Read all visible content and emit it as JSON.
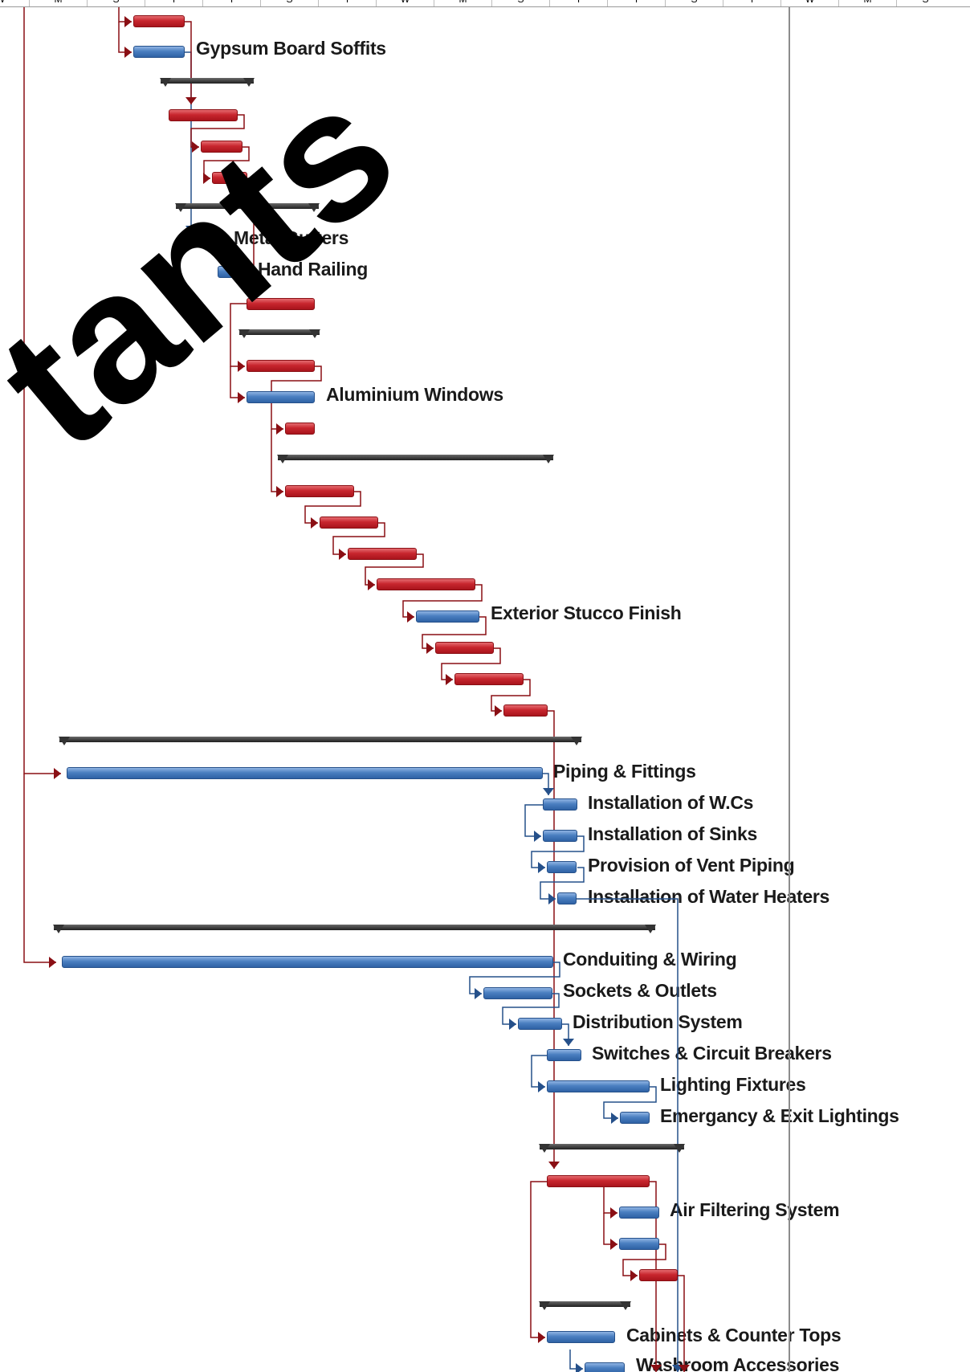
{
  "timescale": {
    "labels": [
      "W",
      "M",
      "S",
      "T",
      "T",
      "S",
      "T",
      "W",
      "M",
      "S",
      "T",
      "T",
      "S",
      "T",
      "W",
      "M",
      "S"
    ]
  },
  "tasks": [
    {
      "name": "Gypsum Board Soffits"
    },
    {
      "name": "Metal Gutters"
    },
    {
      "name": "Hand Railing"
    },
    {
      "name": "Aluminium Windows"
    },
    {
      "name": "Exterior Stucco Finish"
    },
    {
      "name": "Piping & Fittings"
    },
    {
      "name": "Installation of W.Cs"
    },
    {
      "name": "Installation of Sinks"
    },
    {
      "name": "Provision of Vent Piping"
    },
    {
      "name": "Installation of Water Heaters"
    },
    {
      "name": "Conduiting & Wiring"
    },
    {
      "name": "Sockets & Outlets"
    },
    {
      "name": "Distribution System"
    },
    {
      "name": "Switches & Circuit Breakers"
    },
    {
      "name": "Lighting Fixtures"
    },
    {
      "name": "Emergancy & Exit Lightings"
    },
    {
      "name": "Air Filtering System"
    },
    {
      "name": "Cabinets & Counter Tops"
    },
    {
      "name": "Washroom Accessories"
    }
  ],
  "colors": {
    "critical": "#c8262e",
    "normal": "#4a7fc0",
    "summary": "#333333",
    "link_critical": "#8a0f14",
    "link_normal": "#25508a"
  },
  "watermark": {
    "text": "tants"
  }
}
